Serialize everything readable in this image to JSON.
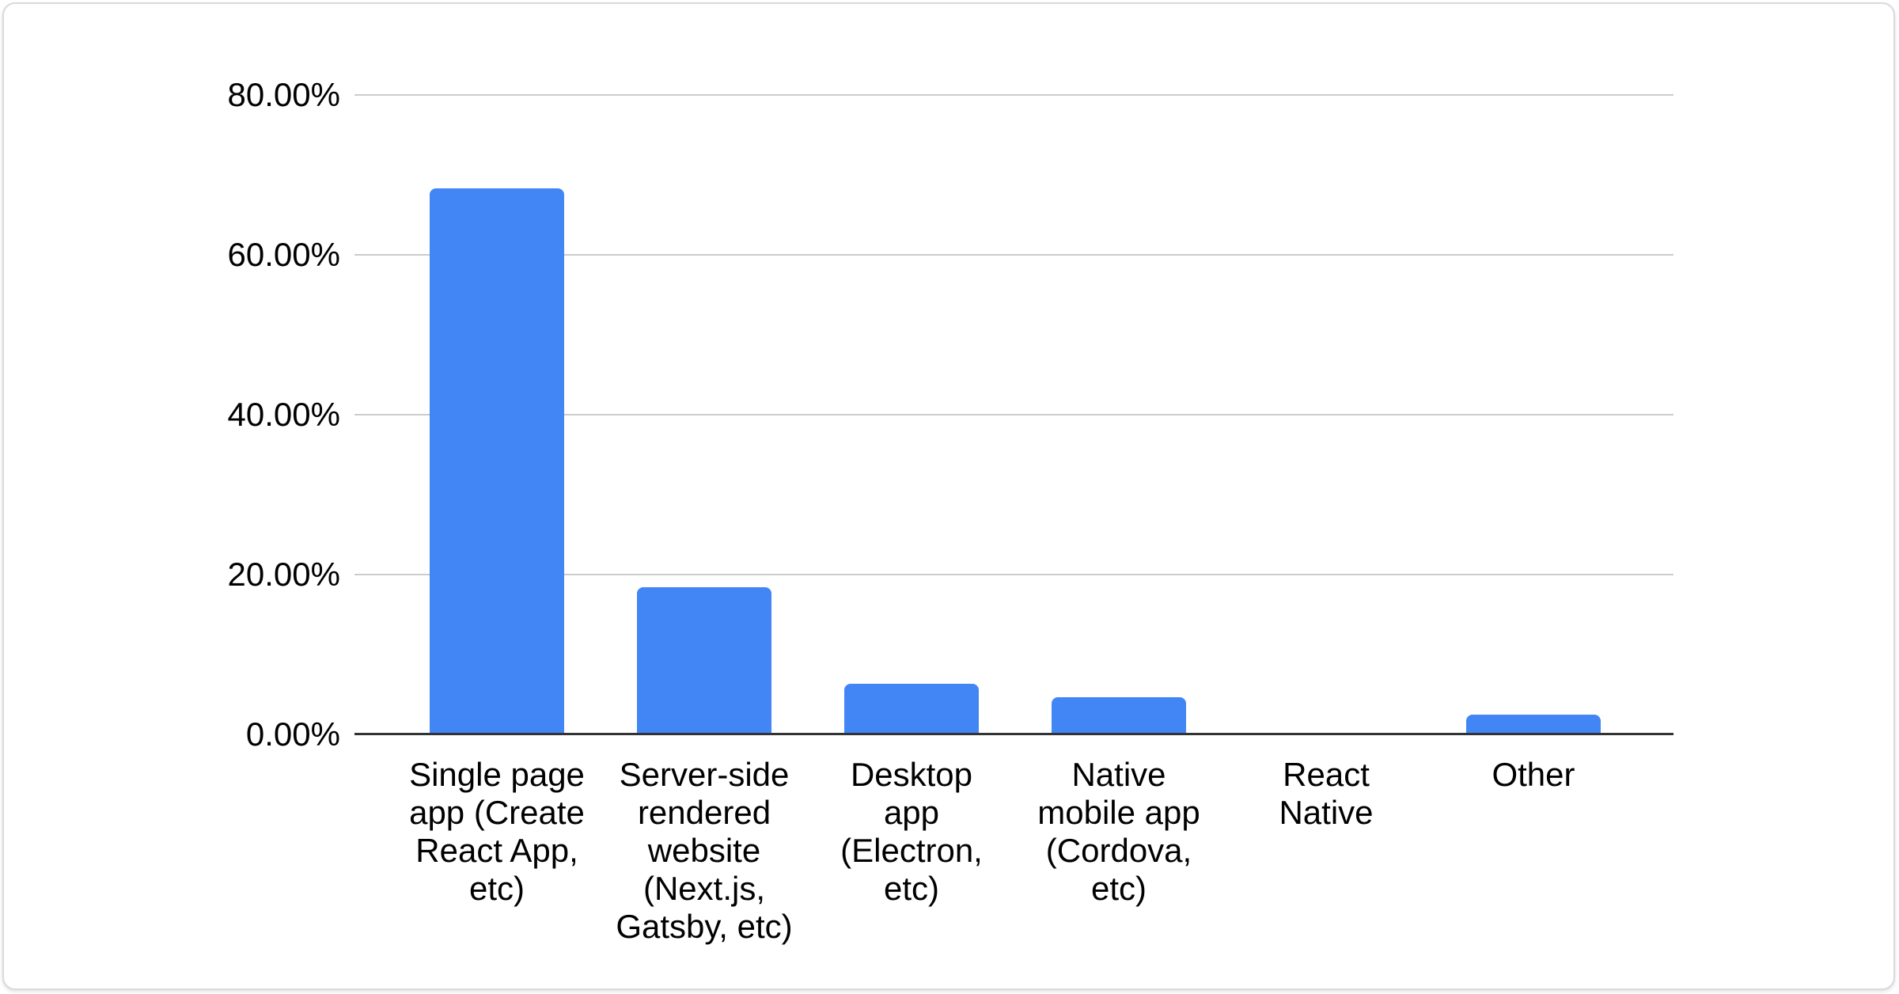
{
  "card": {
    "background_color": "#ffffff",
    "border_color": "#d9dadc"
  },
  "chart_data": {
    "type": "bar",
    "title": "",
    "xlabel": "",
    "ylabel": "",
    "categories": [
      "Single page app (Create React App, etc)",
      "Server-side rendered website (Next.js, Gatsby, etc)",
      "Desktop app (Electron, etc)",
      "Native mobile app (Cordova, etc)",
      "React Native",
      "Other"
    ],
    "category_label_lines": [
      [
        "Single page",
        "app (Create",
        "React App,",
        "etc)"
      ],
      [
        "Server-side",
        "rendered",
        "website",
        "(Next.js,",
        "Gatsby, etc)"
      ],
      [
        "Desktop",
        "app",
        "(Electron,",
        "etc)"
      ],
      [
        "Native",
        "mobile app",
        "(Cordova,",
        "etc)"
      ],
      [
        "React",
        "Native"
      ],
      [
        "Other"
      ]
    ],
    "values": [
      68.3,
      18.4,
      6.3,
      4.7,
      0,
      2.5
    ],
    "unit": "%",
    "ylim": [
      0,
      80
    ],
    "yticks": [
      "80.00%",
      "60.00%",
      "40.00%",
      "20.00%",
      "0.00%"
    ],
    "ytick_values": [
      80,
      60,
      40,
      20,
      0
    ],
    "grid": true,
    "legend": "none",
    "bar_color": "#4285f4",
    "grid_color": "#cccccc",
    "axis_color": "#333333",
    "text_color": "#000000"
  }
}
